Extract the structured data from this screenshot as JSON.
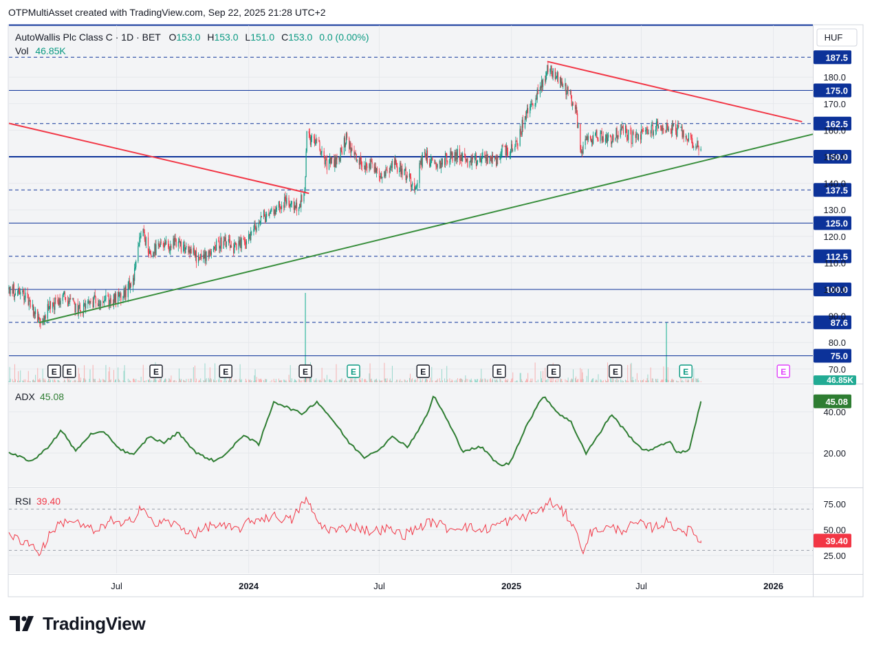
{
  "header": {
    "attribution": "OTPMultiAsset created with TradingView.com, Sep 22, 2025 21:28 UTC+2"
  },
  "legend": {
    "symbol": "AutoWallis Plc Class C · 1D · BET",
    "o_label": "O",
    "o_value": "153.0",
    "h_label": "H",
    "h_value": "153.0",
    "l_label": "L",
    "l_value": "151.0",
    "c_label": "C",
    "c_value": "153.0",
    "change": "0.0 (0.00%)",
    "vol_label": "Vol",
    "vol_value": "46.85K"
  },
  "currency": "HUF",
  "watermark": {
    "text": "TradingView"
  },
  "colors": {
    "navy": "#0c3299",
    "up": "#089981",
    "down": "#f23645",
    "red_line": "#f23645",
    "green_line": "#388e3c",
    "adx": "#2e7d32",
    "rsi": "#f23645",
    "axis_text": "#131722",
    "pane_bg": "#f3f4f6",
    "grid": "#e6e8ec"
  },
  "chart_data": [
    {
      "type": "candlestick",
      "title": "AutoWallis Plc Class C · 1D · BET",
      "x_range": [
        "2023-02-01",
        "2026-02-25"
      ],
      "y_ticks": [
        70.0,
        80.0,
        90.0,
        100.0,
        110.0,
        120.0,
        130.0,
        140.0,
        150.0,
        160.0,
        170.0,
        180.0
      ],
      "x_tick_labels": [
        "Jul",
        "2024",
        "Jul",
        "2025",
        "Jul",
        "2026"
      ],
      "x_tick_dates": [
        "2023-07-01",
        "2024-01-01",
        "2024-07-01",
        "2025-01-01",
        "2025-07-01",
        "2026-01-01"
      ],
      "horizontal_levels": [
        {
          "value": 187.5,
          "label": "187.5",
          "style": "dashed"
        },
        {
          "value": 175.0,
          "label": "175.0",
          "style": "solid"
        },
        {
          "value": 162.5,
          "label": "162.5",
          "style": "dashed"
        },
        {
          "value": 150.0,
          "label": "150.0",
          "style": "solid-bold"
        },
        {
          "value": 137.5,
          "label": "137.5",
          "style": "dashed"
        },
        {
          "value": 125.0,
          "label": "125.0",
          "style": "solid"
        },
        {
          "value": 112.5,
          "label": "112.5",
          "style": "dashed"
        },
        {
          "value": 100.0,
          "label": "100.0",
          "style": "solid"
        },
        {
          "value": 87.6,
          "label": "87.6",
          "style": "dashed"
        },
        {
          "value": 75.0,
          "label": "75.0",
          "style": "solid"
        }
      ],
      "trendlines": [
        {
          "color": "red",
          "from": [
            "2023-02-01",
            162.6
          ],
          "to": [
            "2024-03-25",
            136.2
          ]
        },
        {
          "color": "green",
          "from": [
            "2023-03-15",
            87.5
          ],
          "to": [
            "2026-02-25",
            158.5
          ]
        },
        {
          "color": "red",
          "from": [
            "2025-02-20",
            185.9
          ],
          "to": [
            "2026-02-10",
            163.2
          ]
        }
      ],
      "earnings_markers": [
        "2023-04-05",
        "2023-04-26",
        "2023-08-25",
        "2023-11-30",
        "2024-03-20",
        "2024-05-26",
        "2024-08-31",
        "2024-12-15",
        "2025-03-01",
        "2025-05-26",
        "2025-09-01",
        "2026-01-15"
      ],
      "price_points": [
        [
          "2023-02-01",
          100.0
        ],
        [
          "2023-02-25",
          98.0
        ],
        [
          "2023-03-15",
          88.0
        ],
        [
          "2023-04-01",
          94.0
        ],
        [
          "2023-04-20",
          97.0
        ],
        [
          "2023-05-10",
          92.0
        ],
        [
          "2023-05-25",
          95.0
        ],
        [
          "2023-06-10",
          96.5
        ],
        [
          "2023-06-25",
          95.5
        ],
        [
          "2023-07-10",
          97.5
        ],
        [
          "2023-07-25",
          104.0
        ],
        [
          "2023-08-05",
          123.0
        ],
        [
          "2023-08-15",
          114.0
        ],
        [
          "2023-09-01",
          116.0
        ],
        [
          "2023-09-20",
          117.0
        ],
        [
          "2023-10-10",
          115.0
        ],
        [
          "2023-10-25",
          111.0
        ],
        [
          "2023-11-10",
          115.0
        ],
        [
          "2023-11-25",
          118.0
        ],
        [
          "2023-12-15",
          115.0
        ],
        [
          "2024-01-05",
          121.0
        ],
        [
          "2024-01-20",
          127.0
        ],
        [
          "2024-02-05",
          130.0
        ],
        [
          "2024-02-20",
          133.0
        ],
        [
          "2024-03-10",
          131.0
        ],
        [
          "2024-03-19",
          136.0
        ],
        [
          "2024-03-22",
          158.0
        ],
        [
          "2024-04-05",
          155.0
        ],
        [
          "2024-04-20",
          147.0
        ],
        [
          "2024-05-05",
          149.0
        ],
        [
          "2024-05-15",
          157.0
        ],
        [
          "2024-06-01",
          148.0
        ],
        [
          "2024-06-20",
          147.0
        ],
        [
          "2024-07-05",
          143.0
        ],
        [
          "2024-07-20",
          148.0
        ],
        [
          "2024-08-05",
          144.0
        ],
        [
          "2024-08-20",
          139.0
        ],
        [
          "2024-09-01",
          152.0
        ],
        [
          "2024-09-15",
          146.0
        ],
        [
          "2024-10-01",
          149.0
        ],
        [
          "2024-10-20",
          151.0
        ],
        [
          "2024-11-05",
          147.0
        ],
        [
          "2024-11-25",
          150.0
        ],
        [
          "2024-12-10",
          148.0
        ],
        [
          "2024-12-20",
          153.0
        ],
        [
          "2025-01-05",
          152.0
        ],
        [
          "2025-01-20",
          165.0
        ],
        [
          "2025-02-05",
          173.0
        ],
        [
          "2025-02-15",
          178.0
        ],
        [
          "2025-02-22",
          184.0
        ],
        [
          "2025-03-05",
          180.0
        ],
        [
          "2025-03-20",
          175.0
        ],
        [
          "2025-04-01",
          168.0
        ],
        [
          "2025-04-07",
          152.0
        ],
        [
          "2025-04-15",
          156.0
        ],
        [
          "2025-05-01",
          158.0
        ],
        [
          "2025-05-20",
          157.0
        ],
        [
          "2025-06-05",
          160.0
        ],
        [
          "2025-06-20",
          157.0
        ],
        [
          "2025-07-05",
          159.0
        ],
        [
          "2025-07-20",
          161.0
        ],
        [
          "2025-08-05",
          161.0
        ],
        [
          "2025-08-20",
          160.0
        ],
        [
          "2025-09-05",
          157.0
        ],
        [
          "2025-09-22",
          153.0
        ]
      ],
      "volume_spikes": [
        [
          "2024-03-20",
          420000
        ],
        [
          "2025-08-05",
          280000
        ]
      ]
    },
    {
      "type": "line",
      "title": "ADX",
      "last_value": 45.08,
      "y_ticks": [
        20.0,
        40.0
      ],
      "points": [
        [
          "2023-02-01",
          20
        ],
        [
          "2023-03-05",
          16
        ],
        [
          "2023-03-25",
          22
        ],
        [
          "2023-04-15",
          31
        ],
        [
          "2023-05-05",
          21
        ],
        [
          "2023-05-25",
          29
        ],
        [
          "2023-06-15",
          30
        ],
        [
          "2023-07-05",
          22
        ],
        [
          "2023-07-25",
          19
        ],
        [
          "2023-08-15",
          28
        ],
        [
          "2023-09-05",
          25
        ],
        [
          "2023-09-25",
          30
        ],
        [
          "2023-10-20",
          20
        ],
        [
          "2023-11-15",
          16
        ],
        [
          "2023-12-05",
          21
        ],
        [
          "2023-12-25",
          29
        ],
        [
          "2024-01-15",
          24
        ],
        [
          "2024-02-05",
          45
        ],
        [
          "2024-02-25",
          42
        ],
        [
          "2024-03-15",
          39
        ],
        [
          "2024-04-05",
          45
        ],
        [
          "2024-04-25",
          37
        ],
        [
          "2024-05-20",
          25
        ],
        [
          "2024-06-10",
          18
        ],
        [
          "2024-07-01",
          22
        ],
        [
          "2024-07-20",
          28
        ],
        [
          "2024-08-10",
          23
        ],
        [
          "2024-09-05",
          38
        ],
        [
          "2024-09-15",
          48
        ],
        [
          "2024-10-05",
          35
        ],
        [
          "2024-10-25",
          21
        ],
        [
          "2024-11-20",
          23
        ],
        [
          "2024-12-15",
          14
        ],
        [
          "2024-12-30",
          15
        ],
        [
          "2025-01-20",
          32
        ],
        [
          "2025-02-05",
          42
        ],
        [
          "2025-02-15",
          48
        ],
        [
          "2025-03-05",
          40
        ],
        [
          "2025-03-25",
          35
        ],
        [
          "2025-04-15",
          20
        ],
        [
          "2025-05-05",
          30
        ],
        [
          "2025-05-20",
          39
        ],
        [
          "2025-06-15",
          28
        ],
        [
          "2025-07-05",
          21
        ],
        [
          "2025-07-25",
          23
        ],
        [
          "2025-08-10",
          26
        ],
        [
          "2025-08-20",
          20
        ],
        [
          "2025-09-05",
          21
        ],
        [
          "2025-09-22",
          45.08
        ]
      ]
    },
    {
      "type": "line",
      "title": "RSI",
      "last_value": 39.4,
      "y_ticks": [
        25.0,
        50.0,
        75.0
      ],
      "bands": [
        30,
        70
      ],
      "points": [
        [
          "2023-02-01",
          43
        ],
        [
          "2023-03-01",
          38
        ],
        [
          "2023-03-15",
          27
        ],
        [
          "2023-04-05",
          52
        ],
        [
          "2023-04-25",
          60
        ],
        [
          "2023-05-20",
          52
        ],
        [
          "2023-06-05",
          47
        ],
        [
          "2023-06-20",
          60
        ],
        [
          "2023-07-10",
          53
        ],
        [
          "2023-07-25",
          62
        ],
        [
          "2023-08-05",
          75
        ],
        [
          "2023-08-20",
          55
        ],
        [
          "2023-09-10",
          58
        ],
        [
          "2023-10-01",
          51
        ],
        [
          "2023-10-20",
          46
        ],
        [
          "2023-11-10",
          55
        ],
        [
          "2023-11-25",
          53
        ],
        [
          "2023-12-15",
          50
        ],
        [
          "2024-01-10",
          60
        ],
        [
          "2024-02-05",
          63
        ],
        [
          "2024-03-01",
          59
        ],
        [
          "2024-03-20",
          80
        ],
        [
          "2024-04-10",
          54
        ],
        [
          "2024-05-01",
          49
        ],
        [
          "2024-05-25",
          54
        ],
        [
          "2024-06-20",
          48
        ],
        [
          "2024-07-10",
          51
        ],
        [
          "2024-08-05",
          45
        ],
        [
          "2024-08-25",
          53
        ],
        [
          "2024-09-15",
          58
        ],
        [
          "2024-10-05",
          51
        ],
        [
          "2024-10-25",
          54
        ],
        [
          "2024-11-20",
          49
        ],
        [
          "2024-12-20",
          57
        ],
        [
          "2025-01-20",
          63
        ],
        [
          "2025-02-10",
          69
        ],
        [
          "2025-02-25",
          77
        ],
        [
          "2025-03-20",
          63
        ],
        [
          "2025-04-01",
          52
        ],
        [
          "2025-04-08",
          27
        ],
        [
          "2025-04-20",
          46
        ],
        [
          "2025-05-10",
          52
        ],
        [
          "2025-06-05",
          50
        ],
        [
          "2025-06-25",
          56
        ],
        [
          "2025-07-15",
          52
        ],
        [
          "2025-08-05",
          57
        ],
        [
          "2025-08-25",
          50
        ],
        [
          "2025-09-10",
          48
        ],
        [
          "2025-09-22",
          39.4
        ]
      ]
    }
  ]
}
